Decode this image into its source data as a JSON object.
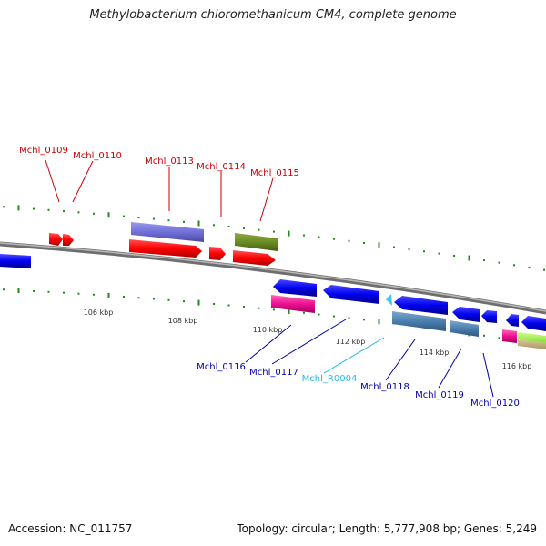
{
  "title": "Methylobacterium chloromethanicum CM4, complete genome",
  "footer": {
    "accession": "Accession: NC_011757",
    "stats": "Topology: circular; Length: 5,777,908 bp; Genes: 5,249"
  },
  "colors": {
    "forward_label": "#cc0000",
    "reverse_label": "#0000aa",
    "rna_label": "#22bbdd",
    "backbone": "#808080",
    "tick": "#228822"
  },
  "scale_labels": [
    "106 kbp",
    "108 kbp",
    "110 kbp",
    "112 kbp",
    "114 kbp",
    "116 kbp"
  ],
  "forward_genes": [
    "Mchl_0109",
    "Mchl_0110",
    "Mchl_0113",
    "Mchl_0114",
    "Mchl_0115"
  ],
  "reverse_genes": [
    "Mchl_0116",
    "Mchl_0117",
    "Mchl_R0004",
    "Mchl_0118",
    "Mchl_0119",
    "Mchl_0120"
  ]
}
